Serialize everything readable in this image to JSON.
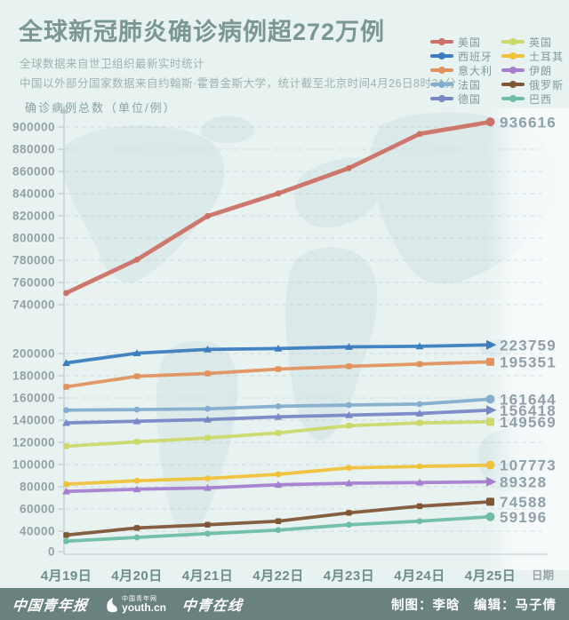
{
  "title": "全球新冠肺炎确诊病例超272万例",
  "subtitles": {
    "line1": "全球数据来自世卫组织最新实时统计",
    "line2": "中国以外部分国家数据来自约翰斯·霍普金斯大学，统计截至北京时间4月26日8时31分"
  },
  "y_axis_title": "确诊病例总数（单位/例）",
  "x_axis_label": "日期",
  "colors": {
    "background": "#e8f2f0",
    "map_watermark": "#d8e7e8",
    "footer_bar": "#6a827f",
    "title_text": "#7a9794",
    "y_tick_text": "#93a0a7",
    "x_tick_text": "#6e8c8a",
    "end_label_text": "#8fa0a9"
  },
  "chart_data": {
    "type": "line",
    "categories": [
      "4月19日",
      "4月20日",
      "4月21日",
      "4月22日",
      "4月23日",
      "4月24日",
      "4月25日"
    ],
    "y_axis": {
      "upper_ticks": [
        900000,
        880000,
        860000,
        840000,
        820000,
        800000,
        780000,
        760000,
        740000
      ],
      "lower_ticks": [
        200000,
        180000,
        160000,
        140000,
        120000,
        100000,
        80000,
        60000,
        40000,
        0
      ],
      "axis_break_between": [
        200000,
        740000
      ]
    },
    "legend_position": "top-right",
    "grid": "dashed-horizontal",
    "series": [
      {
        "id": "us",
        "name": "美国",
        "color": "#cb7166",
        "marker": "circle",
        "panel": "upper",
        "values": [
          750500,
          780500,
          819800,
          840200,
          863000,
          893800,
          904600
        ],
        "end_label": "936616"
      },
      {
        "id": "spain",
        "name": "西班牙",
        "color": "#3b7dc0",
        "marker": "triangle",
        "panel": "lower",
        "values": [
          191500,
          200300,
          203700,
          204500,
          206000,
          206500,
          207800
        ],
        "end_label": "223759"
      },
      {
        "id": "italy",
        "name": "意大利",
        "color": "#e2925f",
        "marker": "square",
        "panel": "lower",
        "values": [
          170000,
          179500,
          182000,
          186000,
          188500,
          190500,
          192500
        ],
        "end_label": "195351"
      },
      {
        "id": "france",
        "name": "法国",
        "color": "#84aecf",
        "marker": "circle",
        "panel": "lower",
        "values": [
          149000,
          149500,
          150200,
          152500,
          153600,
          154500,
          158900
        ],
        "end_label": "161644"
      },
      {
        "id": "germany",
        "name": "德国",
        "color": "#7887c5",
        "marker": "triangle",
        "panel": "lower",
        "values": [
          137500,
          139000,
          140500,
          143000,
          144500,
          146000,
          149000
        ],
        "end_label": "156418"
      },
      {
        "id": "uk",
        "name": "英国",
        "color": "#ccd96a",
        "marker": "square",
        "panel": "lower",
        "values": [
          116500,
          120500,
          124000,
          128500,
          135000,
          137500,
          138500
        ],
        "end_label": "149569"
      },
      {
        "id": "turkey",
        "name": "土耳其",
        "color": "#f0c23a",
        "marker": "circle",
        "panel": "lower",
        "values": [
          82300,
          85400,
          87500,
          91200,
          97000,
          98300,
          99500
        ],
        "end_label": "107773"
      },
      {
        "id": "iran",
        "name": "伊朗",
        "color": "#a67ed0",
        "marker": "triangle",
        "panel": "lower",
        "values": [
          75800,
          77800,
          79000,
          81800,
          83200,
          83800,
          84500
        ],
        "end_label": "89328"
      },
      {
        "id": "russia",
        "name": "俄罗斯",
        "color": "#7f5636",
        "marker": "square",
        "panel": "lower",
        "values": [
          36500,
          42900,
          45800,
          49000,
          56500,
          62500,
          66500
        ],
        "end_label": "74588"
      },
      {
        "id": "brazil",
        "name": "巴西",
        "color": "#6fbda6",
        "marker": "circle",
        "panel": "lower",
        "values": [
          31000,
          34400,
          37800,
          41000,
          45800,
          49000,
          53000
        ],
        "end_label": "59196"
      }
    ]
  },
  "footer": {
    "logo1": "中国青年报",
    "logo_youth_caption": "中国青年网",
    "logo_youth_main": "youth.cn",
    "logo3": "中青在线",
    "credits": "制图：李晗　编辑：马子倩"
  }
}
